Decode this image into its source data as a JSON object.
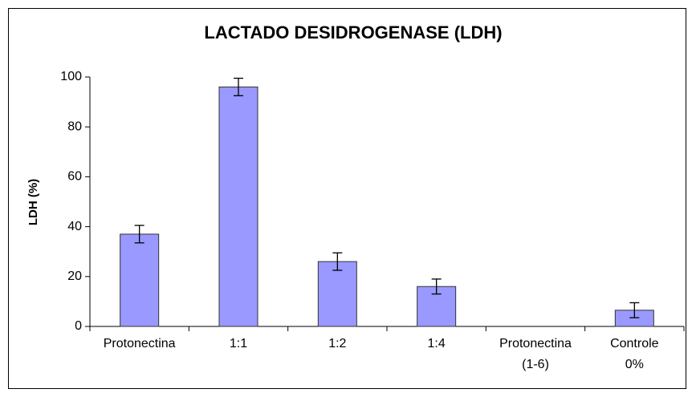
{
  "chart_data": {
    "type": "bar",
    "title": "LACTADO DESIDROGENASE (LDH)",
    "y_label": "LDH (%)",
    "categories": [
      [
        "Protonectina"
      ],
      [
        "1:1"
      ],
      [
        "1:2"
      ],
      [
        "1:4"
      ],
      [
        "Protonectina",
        "(1-6)"
      ],
      [
        "Controle",
        "0%"
      ]
    ],
    "values": [
      37,
      96,
      26,
      16,
      0,
      6.5
    ],
    "errors": [
      3.5,
      3.5,
      3.5,
      3,
      null,
      3
    ],
    "color": "#9999ff",
    "ylim": [
      0,
      100
    ],
    "yticks": [
      0,
      20,
      40,
      60,
      80,
      100
    ],
    "grid": false
  }
}
